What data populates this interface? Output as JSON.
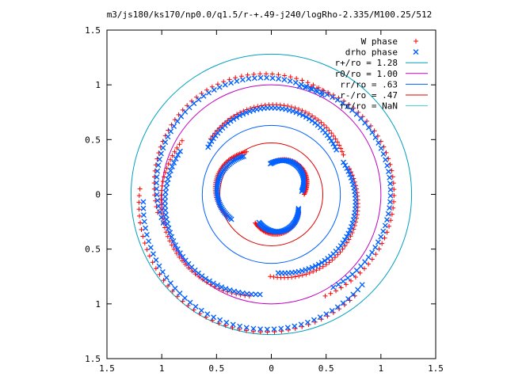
{
  "chart_data": {
    "type": "scatter",
    "title": "m3/js180/ks170/np0.0/q1.5/r-+.49-j240/logRho-2.335/M100.25/512",
    "xlabel": "",
    "ylabel": "",
    "xlim": [
      -1.5,
      1.5
    ],
    "ylim": [
      -1.5,
      1.5
    ],
    "x_tick_labels": [
      "1.5",
      "1",
      "0.5",
      "0",
      "0.5",
      "1",
      "1.5"
    ],
    "y_tick_labels": [
      "1.5",
      "1",
      "0.5",
      "0",
      "0.5",
      "1",
      "1.5"
    ],
    "tick_values": [
      -1.5,
      -1,
      -0.5,
      0,
      0.5,
      1,
      1.5
    ],
    "grid": false,
    "legend_position": "top-right",
    "series": [
      {
        "name": "W phase",
        "marker": "plus",
        "color": "#ff0000",
        "spiral": [
          [
            0.3,
            0.0,
            1.5
          ],
          [
            0.45,
            2.1,
            1.5
          ],
          [
            0.3,
            4.2,
            1.5
          ],
          [
            0.75,
            0.5,
            1.9
          ],
          [
            0.95,
            2.6,
            1.9
          ],
          [
            0.75,
            4.7,
            1.9
          ],
          [
            1.05,
            1.0,
            2.3
          ],
          [
            1.2,
            3.1,
            2.3
          ],
          [
            1.05,
            5.2,
            2.3
          ]
        ]
      },
      {
        "name": "drho phase",
        "marker": "x",
        "color": "#0060ff",
        "spiral": [
          [
            0.28,
            0.1,
            1.5
          ],
          [
            0.43,
            2.2,
            1.5
          ],
          [
            0.28,
            4.3,
            1.5
          ],
          [
            0.72,
            0.6,
            1.9
          ],
          [
            0.92,
            2.7,
            1.9
          ],
          [
            0.72,
            4.8,
            1.9
          ],
          [
            1.02,
            1.1,
            2.3
          ],
          [
            1.17,
            3.2,
            2.3
          ],
          [
            1.02,
            5.3,
            2.3
          ]
        ]
      },
      {
        "name": "r+/ro = 1.28",
        "type": "circle",
        "r": 1.28,
        "color": "#00a0c0"
      },
      {
        "name": "r0/ro = 1.00",
        "type": "circle",
        "r": 1.0,
        "color": "#c000c0"
      },
      {
        "name": "rr/ro = .63",
        "type": "circle",
        "r": 0.63,
        "color": "#0060ff"
      },
      {
        "name": "r-/ro = .47",
        "type": "circle",
        "r": 0.47,
        "color": "#e00000"
      },
      {
        "name": "rc/ro = NaN",
        "type": "circle",
        "r": null,
        "color": "#40d0d0"
      }
    ]
  }
}
